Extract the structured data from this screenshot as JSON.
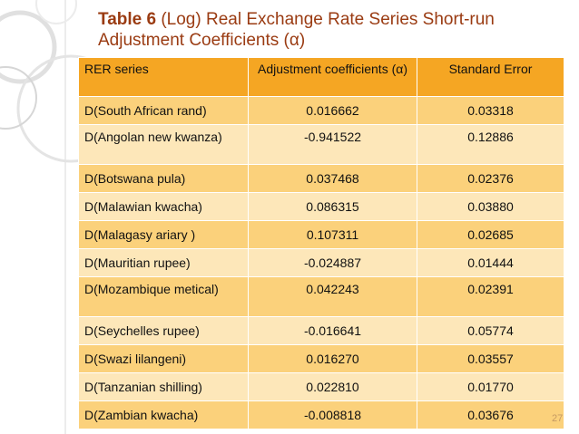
{
  "slide": {
    "title_bold": "Table 6",
    "title_rest": " (Log) Real Exchange Rate Series Short-run Adjustment Coefficients (α)",
    "page_number": "27"
  },
  "table": {
    "headers": [
      "RER series",
      "Adjustment coefficients (α)",
      "Standard Error"
    ],
    "rows": [
      [
        "D(South African  rand)",
        "0.016662",
        "0.03318"
      ],
      [
        "D(Angolan new kwanza)",
        "-0.941522",
        "0.12886"
      ],
      [
        "D(Botswana pula)",
        "0.037468",
        "0.02376"
      ],
      [
        "D(Malawian kwacha)",
        "0.086315",
        "0.03880"
      ],
      [
        "D(Malagasy ariary )",
        "0.107311",
        "0.02685"
      ],
      [
        "D(Mauritian rupee)",
        "-0.024887",
        "0.01444"
      ],
      [
        "D(Mozambique metical)",
        "0.042243",
        "0.02391"
      ],
      [
        "D(Seychelles rupee)",
        "-0.016641",
        "0.05774"
      ],
      [
        "D(Swazi lilangeni)",
        "0.016270",
        "0.03557"
      ],
      [
        "D(Tanzanian shilling)",
        "0.022810",
        "0.01770"
      ],
      [
        "D(Zambian kwacha)",
        "-0.008818",
        "0.03676"
      ]
    ]
  },
  "colors": {
    "header_bg": "#f5a623",
    "row_dark": "#fbd17b",
    "row_light": "#fde7b9",
    "title_color": "#9a3b12"
  }
}
